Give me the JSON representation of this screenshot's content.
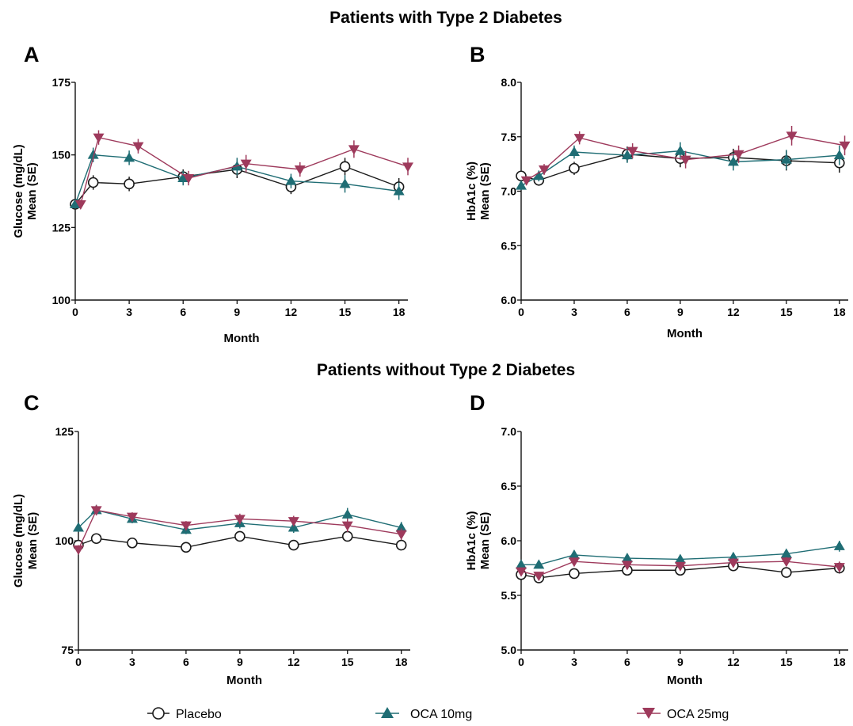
{
  "sections": [
    {
      "title": "Patients with Type 2 Diabetes"
    },
    {
      "title": "Patients without Type 2 Diabetes"
    }
  ],
  "legend": [
    {
      "label": "Placebo",
      "marker": "circle-open",
      "color": "#1a1a1a"
    },
    {
      "label": "OCA 10mg",
      "marker": "triangle-up",
      "color": "#1f6d74"
    },
    {
      "label": "OCA 25mg",
      "marker": "triangle-down",
      "color": "#9e3a5c"
    }
  ],
  "chart_data": [
    {
      "panel": "A",
      "type": "line",
      "xlabel": "Month",
      "ylabel": [
        "Glucose (mg/dL)",
        "Mean (SE)"
      ],
      "ylim": [
        100,
        175
      ],
      "yticks": [
        100,
        125,
        150,
        175
      ],
      "xlim": [
        0,
        18.5
      ],
      "xticks": [
        0,
        3,
        6,
        9,
        12,
        15,
        18
      ],
      "series": [
        {
          "name": "Placebo",
          "x": [
            0,
            1,
            3,
            6,
            9,
            12,
            15,
            18
          ],
          "y": [
            133,
            140.5,
            140,
            142.5,
            145,
            139,
            146,
            139
          ],
          "se": [
            1.5,
            2.5,
            2.5,
            2.5,
            3,
            2.5,
            3,
            3
          ]
        },
        {
          "name": "OCA 10mg",
          "x": [
            0,
            1,
            3,
            6,
            9,
            12,
            15,
            18
          ],
          "y": [
            133,
            150,
            149,
            142,
            146,
            141,
            140,
            137.5
          ],
          "se": [
            1.5,
            2.5,
            2.5,
            2.5,
            3,
            2.5,
            3,
            3
          ]
        },
        {
          "name": "OCA 25mg",
          "x": [
            0.3,
            1.3,
            3.5,
            6.3,
            9.5,
            12.5,
            15.5,
            18.5
          ],
          "y": [
            133,
            156,
            153,
            142,
            147,
            145,
            152,
            146
          ],
          "se": [
            1.5,
            2.5,
            2.5,
            2.5,
            3,
            2.5,
            3,
            3
          ]
        }
      ]
    },
    {
      "panel": "B",
      "type": "line",
      "xlabel": "Month",
      "ylabel": [
        "HbA1c (%)",
        "Mean (SE)"
      ],
      "ylim": [
        6.0,
        8.0
      ],
      "yticks": [
        "6.0",
        "6.5",
        "7.0",
        "7.5",
        "8.0"
      ],
      "xlim": [
        0,
        18.5
      ],
      "xticks": [
        0,
        3,
        6,
        9,
        12,
        15,
        18
      ],
      "series": [
        {
          "name": "Placebo",
          "x": [
            0,
            1,
            3,
            6,
            9,
            12,
            15,
            18
          ],
          "y": [
            7.14,
            7.1,
            7.21,
            7.34,
            7.3,
            7.31,
            7.28,
            7.26
          ],
          "se": [
            0.04,
            0.05,
            0.06,
            0.07,
            0.08,
            0.08,
            0.09,
            0.09
          ]
        },
        {
          "name": "OCA 10mg",
          "x": [
            0,
            1,
            3,
            6,
            9,
            12,
            15,
            18
          ],
          "y": [
            7.05,
            7.14,
            7.36,
            7.33,
            7.37,
            7.27,
            7.29,
            7.33
          ],
          "se": [
            0.04,
            0.05,
            0.06,
            0.07,
            0.08,
            0.08,
            0.09,
            0.09
          ]
        },
        {
          "name": "OCA 25mg",
          "x": [
            0.3,
            1.3,
            3.3,
            6.3,
            9.3,
            12.3,
            15.3,
            18.3
          ],
          "y": [
            7.1,
            7.2,
            7.49,
            7.37,
            7.29,
            7.34,
            7.51,
            7.42
          ],
          "se": [
            0.04,
            0.05,
            0.06,
            0.07,
            0.08,
            0.08,
            0.09,
            0.09
          ]
        }
      ]
    },
    {
      "panel": "C",
      "type": "line",
      "xlabel": "Month",
      "ylabel": [
        "Glucose (mg/dL)",
        "Mean (SE)"
      ],
      "ylim": [
        75,
        125
      ],
      "yticks": [
        75,
        100,
        125
      ],
      "xlim": [
        0,
        18.5
      ],
      "xticks": [
        0,
        3,
        6,
        9,
        12,
        15,
        18
      ],
      "series": [
        {
          "name": "Placebo",
          "x": [
            0,
            1,
            3,
            6,
            9,
            12,
            15,
            18
          ],
          "y": [
            99,
            100.5,
            99.5,
            98.5,
            101,
            99,
            101,
            99
          ],
          "se": [
            0.8,
            0.8,
            0.8,
            0.8,
            1,
            1,
            1,
            1
          ]
        },
        {
          "name": "OCA 10mg",
          "x": [
            0,
            1,
            3,
            6,
            9,
            12,
            15,
            18
          ],
          "y": [
            103,
            107,
            105,
            102.5,
            104,
            103,
            106,
            103
          ],
          "se": [
            1,
            1.2,
            1,
            1,
            1.2,
            1.2,
            1.5,
            1.3
          ]
        },
        {
          "name": "OCA 25mg",
          "x": [
            0,
            1,
            3,
            6,
            9,
            12,
            15,
            18
          ],
          "y": [
            98,
            107,
            105.5,
            103.5,
            105,
            104.5,
            103.5,
            101.5
          ],
          "se": [
            1,
            1.2,
            1,
            1,
            1.2,
            1.2,
            1.5,
            1.3
          ]
        }
      ]
    },
    {
      "panel": "D",
      "type": "line",
      "xlabel": "Month",
      "ylabel": [
        "HbA1c (%)",
        "Mean (SE)"
      ],
      "ylim": [
        5.0,
        7.0
      ],
      "yticks": [
        "5.0",
        "5.5",
        "6.0",
        "6.5",
        "7.0"
      ],
      "xlim": [
        0,
        18.5
      ],
      "xticks": [
        0,
        3,
        6,
        9,
        12,
        15,
        18
      ],
      "series": [
        {
          "name": "Placebo",
          "x": [
            0,
            1,
            3,
            6,
            9,
            12,
            15,
            18
          ],
          "y": [
            5.69,
            5.66,
            5.7,
            5.73,
            5.73,
            5.77,
            5.71,
            5.75
          ],
          "se": [
            0.02,
            0.02,
            0.03,
            0.03,
            0.03,
            0.04,
            0.04,
            0.05
          ]
        },
        {
          "name": "OCA 10mg",
          "x": [
            0,
            1,
            3,
            6,
            9,
            12,
            15,
            18
          ],
          "y": [
            5.78,
            5.78,
            5.87,
            5.84,
            5.83,
            5.85,
            5.88,
            5.95
          ],
          "se": [
            0.02,
            0.02,
            0.03,
            0.03,
            0.03,
            0.04,
            0.04,
            0.05
          ]
        },
        {
          "name": "OCA 25mg",
          "x": [
            0,
            1,
            3,
            6,
            9,
            12,
            15,
            18
          ],
          "y": [
            5.72,
            5.68,
            5.81,
            5.78,
            5.77,
            5.8,
            5.81,
            5.76
          ],
          "se": [
            0.02,
            0.02,
            0.03,
            0.03,
            0.03,
            0.04,
            0.04,
            0.05
          ]
        }
      ]
    }
  ]
}
